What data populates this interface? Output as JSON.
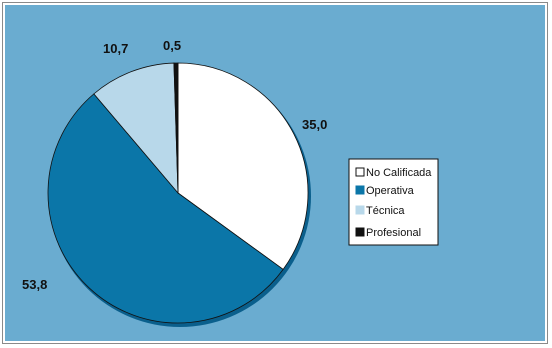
{
  "chart_data": {
    "type": "pie",
    "categories": [
      "No Calificada",
      "Operativa",
      "Técnica",
      "Profesional"
    ],
    "values": [
      35.0,
      53.8,
      10.7,
      0.5
    ],
    "value_labels": [
      "35,0",
      "53,8",
      "10,7",
      "0,5"
    ],
    "colors": [
      "#ffffff",
      "#0b76a8",
      "#b8d8ea",
      "#111111"
    ],
    "title": "",
    "legend_placement": "right"
  }
}
